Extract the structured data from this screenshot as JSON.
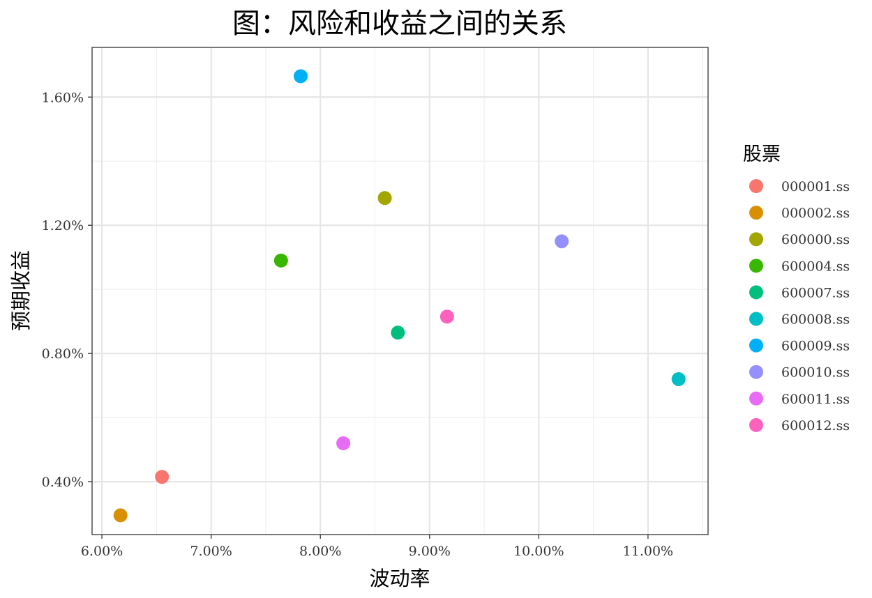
{
  "chart_data": {
    "type": "scatter",
    "title": "图：风险和收益之间的关系",
    "xlabel": "波动率",
    "ylabel": "预期收益",
    "xlim": [
      0.0591,
      0.1155
    ],
    "ylim": [
      0.00235,
      0.01755
    ],
    "x_ticks": [
      0.06,
      0.07,
      0.08,
      0.09,
      0.1,
      0.11
    ],
    "x_tick_labels": [
      "6.00%",
      "7.00%",
      "8.00%",
      "9.00%",
      "10.00%",
      "11.00%"
    ],
    "y_ticks": [
      0.004,
      0.008,
      0.012,
      0.016
    ],
    "y_tick_labels": [
      "0.40%",
      "0.80%",
      "1.20%",
      "1.60%"
    ],
    "grid": true,
    "legend": {
      "title": "股票",
      "placement": "right"
    },
    "series": [
      {
        "name": "000001.ss",
        "color": "#F8766D",
        "x": 0.0655,
        "y": 0.00415
      },
      {
        "name": "000002.ss",
        "color": "#D89000",
        "x": 0.0617,
        "y": 0.00295
      },
      {
        "name": "600000.ss",
        "color": "#A3A500",
        "x": 0.0859,
        "y": 0.01285
      },
      {
        "name": "600004.ss",
        "color": "#39B600",
        "x": 0.0764,
        "y": 0.0109
      },
      {
        "name": "600007.ss",
        "color": "#00BF7D",
        "x": 0.0871,
        "y": 0.00865
      },
      {
        "name": "600008.ss",
        "color": "#00BFC4",
        "x": 0.1128,
        "y": 0.0072
      },
      {
        "name": "600009.ss",
        "color": "#00B0F6",
        "x": 0.0782,
        "y": 0.01665
      },
      {
        "name": "600010.ss",
        "color": "#9590FF",
        "x": 0.1021,
        "y": 0.0115
      },
      {
        "name": "600011.ss",
        "color": "#E76BF3",
        "x": 0.0821,
        "y": 0.0052
      },
      {
        "name": "600012.ss",
        "color": "#FF62BC",
        "x": 0.0916,
        "y": 0.00915
      }
    ]
  }
}
